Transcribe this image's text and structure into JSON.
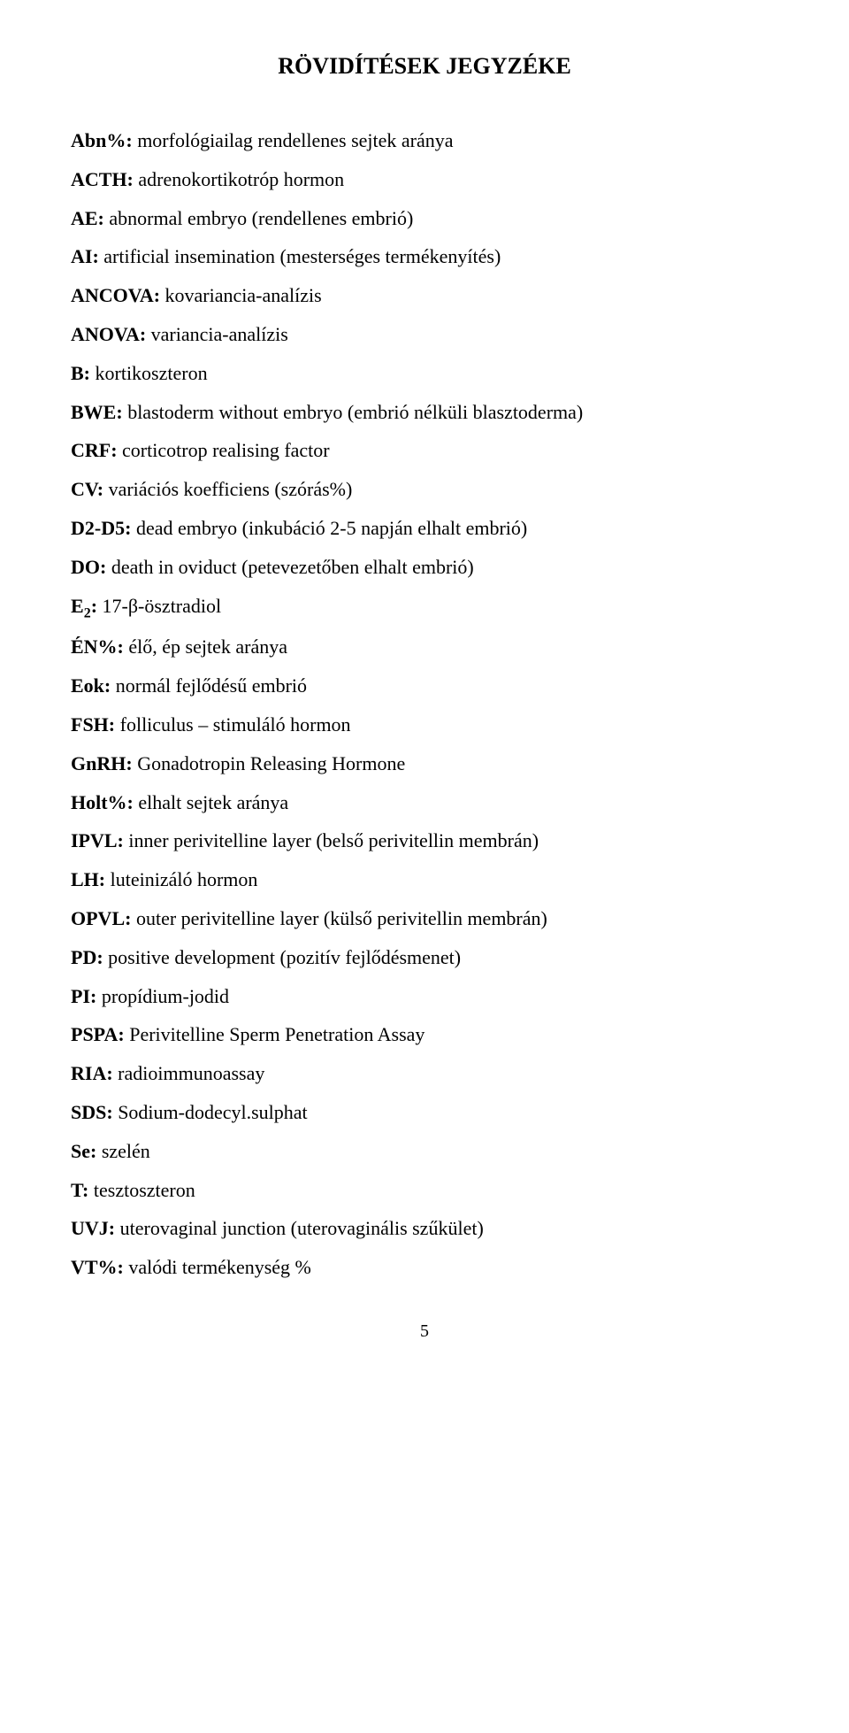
{
  "title": "RÖVIDÍTÉSEK JEGYZÉKE",
  "entries": [
    {
      "abbrev": "Abn%:",
      "def": " morfológiailag rendellenes sejtek aránya"
    },
    {
      "abbrev": "ACTH:",
      "def": " adrenokortikotróp hormon"
    },
    {
      "abbrev": "AE:",
      "def": " abnormal embryo (rendellenes embrió)"
    },
    {
      "abbrev": "AI:",
      "def": " artificial insemination (mesterséges termékenyítés)"
    },
    {
      "abbrev": "ANCOVA:",
      "def": " kovariancia-analízis"
    },
    {
      "abbrev": "ANOVA:",
      "def": " variancia-analízis"
    },
    {
      "abbrev": "B:",
      "def": " kortikoszteron"
    },
    {
      "abbrev": "BWE:",
      "def": " blastoderm without embryo (embrió nélküli blasztoderma)"
    },
    {
      "abbrev": "CRF:",
      "def": " corticotrop realising factor"
    },
    {
      "abbrev": "CV:",
      "def": " variációs koefficiens (szórás%)"
    },
    {
      "abbrev": "D2-D5:",
      "def": " dead embryo (inkubáció 2-5 napján elhalt embrió)"
    },
    {
      "abbrev": "DO:",
      "def": " death in oviduct (petevezetőben elhalt embrió)"
    },
    {
      "abbrev": "E",
      "sub": "2",
      "abbrev2": ":",
      "def": " 17-β-ösztradiol"
    },
    {
      "abbrev": "ÉN%:",
      "def": " élő, ép sejtek aránya"
    },
    {
      "abbrev": "Eok:",
      "def": " normál fejlődésű embrió"
    },
    {
      "abbrev": "FSH:",
      "def": " folliculus – stimuláló hormon"
    },
    {
      "abbrev": "GnRH:",
      "def": " Gonadotropin Releasing Hormone"
    },
    {
      "abbrev": "Holt%:",
      "def": " elhalt sejtek aránya"
    },
    {
      "abbrev": "IPVL:",
      "def": " inner perivitelline layer (belső perivitellin membrán)"
    },
    {
      "abbrev": "LH:",
      "def": " luteinizáló hormon"
    },
    {
      "abbrev": "OPVL:",
      "def": " outer perivitelline layer (külső perivitellin membrán)"
    },
    {
      "abbrev": "PD:",
      "def": " positive development (pozitív fejlődésmenet)"
    },
    {
      "abbrev": "PI:",
      "def": " propídium-jodid"
    },
    {
      "abbrev": "PSPA:",
      "def": " Perivitelline Sperm Penetration Assay"
    },
    {
      "abbrev": "RIA:",
      "def": " radioimmunoassay"
    },
    {
      "abbrev": "SDS:",
      "def": " Sodium-dodecyl.sulphat"
    },
    {
      "abbrev": "Se:",
      "def": " szelén"
    },
    {
      "abbrev": "T:",
      "def": " tesztoszteron"
    },
    {
      "abbrev": "UVJ:",
      "def": " uterovaginal junction (uterovaginális szűkület)"
    },
    {
      "abbrev": "VT%:",
      "def": " valódi termékenység %"
    }
  ],
  "page_number": "5"
}
